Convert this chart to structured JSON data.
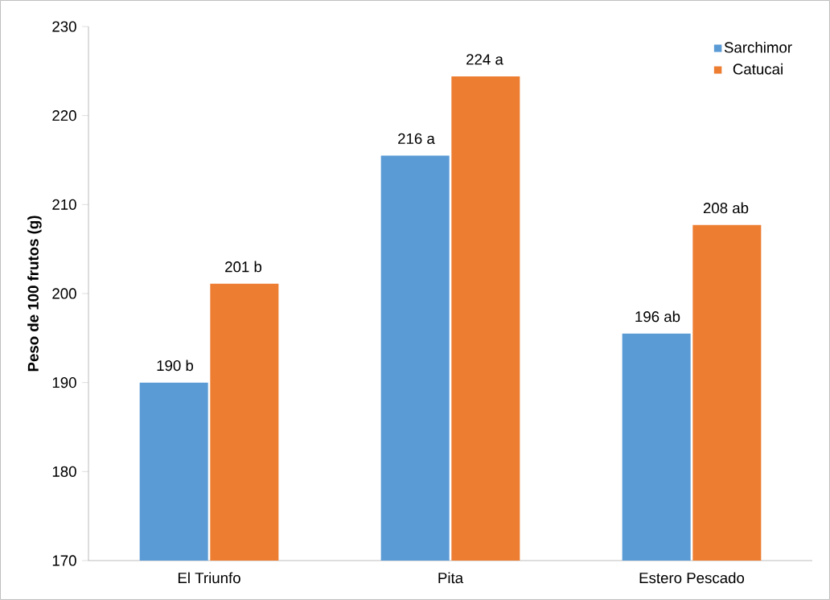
{
  "chart_data": {
    "type": "bar",
    "ylabel": "Peso de 100 frutos (g)",
    "categories": [
      "El Triunfo",
      "Pita",
      "Estero Pescado"
    ],
    "series": [
      {
        "name": "Sarchimor",
        "color": "#5b9bd5",
        "values": [
          190,
          215.5,
          195.5
        ],
        "value_labels": [
          "190 b",
          "216 a",
          "196 ab"
        ]
      },
      {
        "name": "Catucai",
        "color": "#ed7d31",
        "values": [
          201.1,
          224.4,
          207.7
        ],
        "value_labels": [
          "201 b",
          "224 a",
          "208 ab"
        ]
      }
    ],
    "ylim": [
      170,
      230
    ],
    "yticks": [
      170,
      180,
      190,
      200,
      210,
      220,
      230
    ],
    "grid": false,
    "legend": "top right"
  }
}
